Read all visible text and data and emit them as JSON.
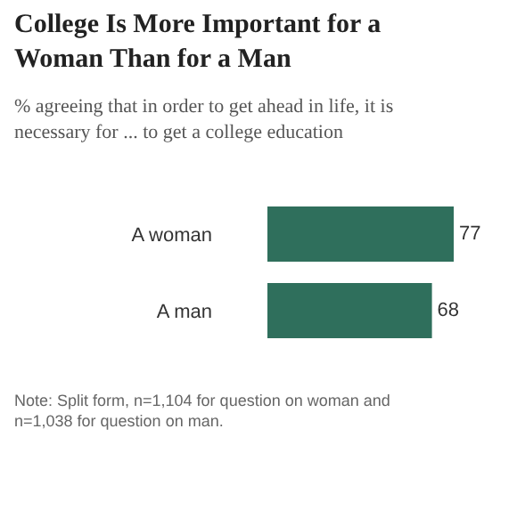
{
  "chart_data": {
    "type": "bar",
    "orientation": "horizontal",
    "title": "College Is More Important for a Woman Than for a Man",
    "subtitle": "% agreeing that in order to get ahead in life, it is necessary for ... to get a college education",
    "categories": [
      "A woman",
      "A man"
    ],
    "values": [
      77,
      68
    ],
    "color": "#2f6f5c",
    "data_labels": true,
    "annotations": [
      "Note: Split form, n=1,104 for question on woman and n=1,038 for question on man."
    ]
  }
}
